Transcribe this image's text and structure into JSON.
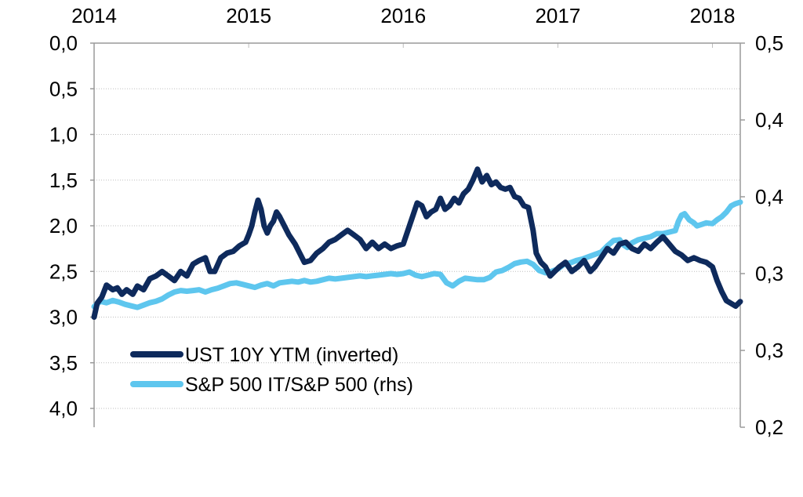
{
  "chart_data": {
    "type": "line",
    "title": "",
    "xlabel": "",
    "ylabel": "",
    "x_ticks": [
      {
        "label": "2014",
        "t": 2014.0
      },
      {
        "label": "2015",
        "t": 2015.0
      },
      {
        "label": "2016",
        "t": 2016.0
      },
      {
        "label": "2017",
        "t": 2017.0
      },
      {
        "label": "2018",
        "t": 2018.0
      }
    ],
    "xlim": [
      2014.0,
      2018.18
    ],
    "y_left": {
      "lim": [
        4.0,
        0.0
      ],
      "inverted": true,
      "ticks": [
        0.0,
        0.5,
        1.0,
        1.5,
        2.0,
        2.5,
        3.0,
        3.5,
        4.0
      ],
      "tick_labels": [
        "0,0",
        "0,5",
        "1,0",
        "1,5",
        "2,0",
        "2,5",
        "3,0",
        "3,5",
        "4,0"
      ]
    },
    "y_right": {
      "lim": [
        0.25,
        0.5
      ],
      "ticks": [
        0.25,
        0.3,
        0.35,
        0.4,
        0.45,
        0.5
      ],
      "tick_labels": [
        "0,2",
        "0,3",
        "0,3",
        "0,4",
        "0,4",
        "0,5"
      ]
    },
    "grid": "horizontal dotted",
    "legend_position": "bottom-left",
    "series": [
      {
        "name": "UST 10Y YTM (inverted)",
        "axis": "left",
        "color": "#0e2a5c",
        "points": [
          [
            2014.0,
            3.0
          ],
          [
            2014.02,
            2.85
          ],
          [
            2014.05,
            2.78
          ],
          [
            2014.08,
            2.65
          ],
          [
            2014.12,
            2.7
          ],
          [
            2014.15,
            2.68
          ],
          [
            2014.18,
            2.75
          ],
          [
            2014.21,
            2.7
          ],
          [
            2014.25,
            2.75
          ],
          [
            2014.28,
            2.66
          ],
          [
            2014.32,
            2.7
          ],
          [
            2014.36,
            2.58
          ],
          [
            2014.4,
            2.55
          ],
          [
            2014.44,
            2.5
          ],
          [
            2014.48,
            2.55
          ],
          [
            2014.52,
            2.6
          ],
          [
            2014.56,
            2.5
          ],
          [
            2014.6,
            2.55
          ],
          [
            2014.64,
            2.42
          ],
          [
            2014.68,
            2.38
          ],
          [
            2014.72,
            2.35
          ],
          [
            2014.75,
            2.5
          ],
          [
            2014.78,
            2.5
          ],
          [
            2014.82,
            2.35
          ],
          [
            2014.86,
            2.3
          ],
          [
            2014.9,
            2.28
          ],
          [
            2014.94,
            2.22
          ],
          [
            2014.98,
            2.18
          ],
          [
            2015.0,
            2.1
          ],
          [
            2015.02,
            2.0
          ],
          [
            2015.04,
            1.85
          ],
          [
            2015.06,
            1.72
          ],
          [
            2015.08,
            1.82
          ],
          [
            2015.1,
            2.0
          ],
          [
            2015.12,
            2.08
          ],
          [
            2015.14,
            2.0
          ],
          [
            2015.16,
            1.95
          ],
          [
            2015.18,
            1.85
          ],
          [
            2015.2,
            1.9
          ],
          [
            2015.23,
            2.0
          ],
          [
            2015.26,
            2.1
          ],
          [
            2015.3,
            2.2
          ],
          [
            2015.33,
            2.3
          ],
          [
            2015.36,
            2.4
          ],
          [
            2015.4,
            2.38
          ],
          [
            2015.44,
            2.3
          ],
          [
            2015.48,
            2.25
          ],
          [
            2015.52,
            2.18
          ],
          [
            2015.56,
            2.15
          ],
          [
            2015.6,
            2.1
          ],
          [
            2015.64,
            2.05
          ],
          [
            2015.68,
            2.1
          ],
          [
            2015.72,
            2.15
          ],
          [
            2015.76,
            2.25
          ],
          [
            2015.8,
            2.18
          ],
          [
            2015.84,
            2.25
          ],
          [
            2015.88,
            2.2
          ],
          [
            2015.92,
            2.25
          ],
          [
            2015.96,
            2.22
          ],
          [
            2016.0,
            2.2
          ],
          [
            2016.03,
            2.05
          ],
          [
            2016.06,
            1.9
          ],
          [
            2016.09,
            1.75
          ],
          [
            2016.12,
            1.78
          ],
          [
            2016.15,
            1.9
          ],
          [
            2016.18,
            1.85
          ],
          [
            2016.21,
            1.82
          ],
          [
            2016.24,
            1.7
          ],
          [
            2016.27,
            1.82
          ],
          [
            2016.3,
            1.78
          ],
          [
            2016.33,
            1.7
          ],
          [
            2016.36,
            1.75
          ],
          [
            2016.39,
            1.65
          ],
          [
            2016.42,
            1.6
          ],
          [
            2016.45,
            1.5
          ],
          [
            2016.48,
            1.38
          ],
          [
            2016.51,
            1.52
          ],
          [
            2016.54,
            1.45
          ],
          [
            2016.57,
            1.55
          ],
          [
            2016.6,
            1.52
          ],
          [
            2016.63,
            1.58
          ],
          [
            2016.66,
            1.6
          ],
          [
            2016.69,
            1.58
          ],
          [
            2016.72,
            1.68
          ],
          [
            2016.75,
            1.7
          ],
          [
            2016.78,
            1.78
          ],
          [
            2016.81,
            1.8
          ],
          [
            2016.84,
            2.05
          ],
          [
            2016.86,
            2.3
          ],
          [
            2016.89,
            2.4
          ],
          [
            2016.92,
            2.45
          ],
          [
            2016.95,
            2.55
          ],
          [
            2016.98,
            2.5
          ],
          [
            2017.01,
            2.45
          ],
          [
            2017.05,
            2.4
          ],
          [
            2017.09,
            2.5
          ],
          [
            2017.13,
            2.45
          ],
          [
            2017.17,
            2.38
          ],
          [
            2017.21,
            2.5
          ],
          [
            2017.24,
            2.45
          ],
          [
            2017.28,
            2.35
          ],
          [
            2017.32,
            2.25
          ],
          [
            2017.36,
            2.3
          ],
          [
            2017.4,
            2.2
          ],
          [
            2017.44,
            2.18
          ],
          [
            2017.48,
            2.25
          ],
          [
            2017.52,
            2.28
          ],
          [
            2017.56,
            2.2
          ],
          [
            2017.6,
            2.25
          ],
          [
            2017.64,
            2.18
          ],
          [
            2017.68,
            2.12
          ],
          [
            2017.72,
            2.2
          ],
          [
            2017.76,
            2.28
          ],
          [
            2017.8,
            2.32
          ],
          [
            2017.84,
            2.38
          ],
          [
            2017.88,
            2.35
          ],
          [
            2017.92,
            2.38
          ],
          [
            2017.96,
            2.4
          ],
          [
            2018.0,
            2.45
          ],
          [
            2018.03,
            2.6
          ],
          [
            2018.06,
            2.72
          ],
          [
            2018.09,
            2.82
          ],
          [
            2018.12,
            2.85
          ],
          [
            2018.15,
            2.88
          ],
          [
            2018.18,
            2.83
          ]
        ]
      },
      {
        "name": "S&P 500 IT/S&P 500 (rhs)",
        "axis": "right",
        "color": "#5ec6ee",
        "points": [
          [
            2014.0,
            0.3285
          ],
          [
            2014.04,
            0.332
          ],
          [
            2014.08,
            0.331
          ],
          [
            2014.12,
            0.3325
          ],
          [
            2014.16,
            0.3315
          ],
          [
            2014.2,
            0.33
          ],
          [
            2014.24,
            0.329
          ],
          [
            2014.28,
            0.328
          ],
          [
            2014.32,
            0.3295
          ],
          [
            2014.36,
            0.331
          ],
          [
            2014.4,
            0.332
          ],
          [
            2014.44,
            0.3335
          ],
          [
            2014.48,
            0.336
          ],
          [
            2014.52,
            0.338
          ],
          [
            2014.56,
            0.339
          ],
          [
            2014.6,
            0.3385
          ],
          [
            2014.64,
            0.339
          ],
          [
            2014.68,
            0.3395
          ],
          [
            2014.72,
            0.338
          ],
          [
            2014.76,
            0.3395
          ],
          [
            2014.8,
            0.3405
          ],
          [
            2014.84,
            0.342
          ],
          [
            2014.88,
            0.3435
          ],
          [
            2014.92,
            0.344
          ],
          [
            2014.96,
            0.343
          ],
          [
            2015.0,
            0.342
          ],
          [
            2015.04,
            0.341
          ],
          [
            2015.08,
            0.3425
          ],
          [
            2015.12,
            0.3435
          ],
          [
            2015.16,
            0.342
          ],
          [
            2015.2,
            0.344
          ],
          [
            2015.24,
            0.3445
          ],
          [
            2015.28,
            0.345
          ],
          [
            2015.32,
            0.3445
          ],
          [
            2015.36,
            0.3455
          ],
          [
            2015.4,
            0.3445
          ],
          [
            2015.44,
            0.345
          ],
          [
            2015.48,
            0.346
          ],
          [
            2015.52,
            0.347
          ],
          [
            2015.56,
            0.3465
          ],
          [
            2015.6,
            0.347
          ],
          [
            2015.64,
            0.3475
          ],
          [
            2015.68,
            0.348
          ],
          [
            2015.72,
            0.3485
          ],
          [
            2015.76,
            0.348
          ],
          [
            2015.8,
            0.3485
          ],
          [
            2015.84,
            0.349
          ],
          [
            2015.88,
            0.3495
          ],
          [
            2015.92,
            0.35
          ],
          [
            2015.96,
            0.3495
          ],
          [
            2016.0,
            0.35
          ],
          [
            2016.04,
            0.351
          ],
          [
            2016.08,
            0.349
          ],
          [
            2016.12,
            0.348
          ],
          [
            2016.16,
            0.349
          ],
          [
            2016.2,
            0.35
          ],
          [
            2016.24,
            0.3495
          ],
          [
            2016.28,
            0.344
          ],
          [
            2016.32,
            0.342
          ],
          [
            2016.36,
            0.345
          ],
          [
            2016.4,
            0.347
          ],
          [
            2016.44,
            0.3465
          ],
          [
            2016.48,
            0.346
          ],
          [
            2016.52,
            0.346
          ],
          [
            2016.56,
            0.3475
          ],
          [
            2016.6,
            0.351
          ],
          [
            2016.64,
            0.352
          ],
          [
            2016.68,
            0.354
          ],
          [
            2016.72,
            0.3565
          ],
          [
            2016.76,
            0.3575
          ],
          [
            2016.8,
            0.358
          ],
          [
            2016.84,
            0.356
          ],
          [
            2016.88,
            0.352
          ],
          [
            2016.92,
            0.3505
          ],
          [
            2016.96,
            0.3515
          ],
          [
            2017.0,
            0.353
          ],
          [
            2017.04,
            0.356
          ],
          [
            2017.08,
            0.357
          ],
          [
            2017.12,
            0.3585
          ],
          [
            2017.16,
            0.3595
          ],
          [
            2017.2,
            0.361
          ],
          [
            2017.24,
            0.3625
          ],
          [
            2017.28,
            0.364
          ],
          [
            2017.32,
            0.368
          ],
          [
            2017.36,
            0.3715
          ],
          [
            2017.4,
            0.372
          ],
          [
            2017.42,
            0.369
          ],
          [
            2017.45,
            0.367
          ],
          [
            2017.48,
            0.37
          ],
          [
            2017.52,
            0.372
          ],
          [
            2017.56,
            0.373
          ],
          [
            2017.6,
            0.374
          ],
          [
            2017.64,
            0.376
          ],
          [
            2017.68,
            0.376
          ],
          [
            2017.72,
            0.377
          ],
          [
            2017.76,
            0.378
          ],
          [
            2017.78,
            0.384
          ],
          [
            2017.8,
            0.388
          ],
          [
            2017.82,
            0.389
          ],
          [
            2017.85,
            0.385
          ],
          [
            2017.88,
            0.383
          ],
          [
            2017.9,
            0.381
          ],
          [
            2017.93,
            0.382
          ],
          [
            2017.96,
            0.383
          ],
          [
            2018.0,
            0.3825
          ],
          [
            2018.03,
            0.385
          ],
          [
            2018.06,
            0.387
          ],
          [
            2018.09,
            0.39
          ],
          [
            2018.12,
            0.394
          ],
          [
            2018.15,
            0.3955
          ],
          [
            2018.18,
            0.3965
          ]
        ]
      }
    ]
  }
}
